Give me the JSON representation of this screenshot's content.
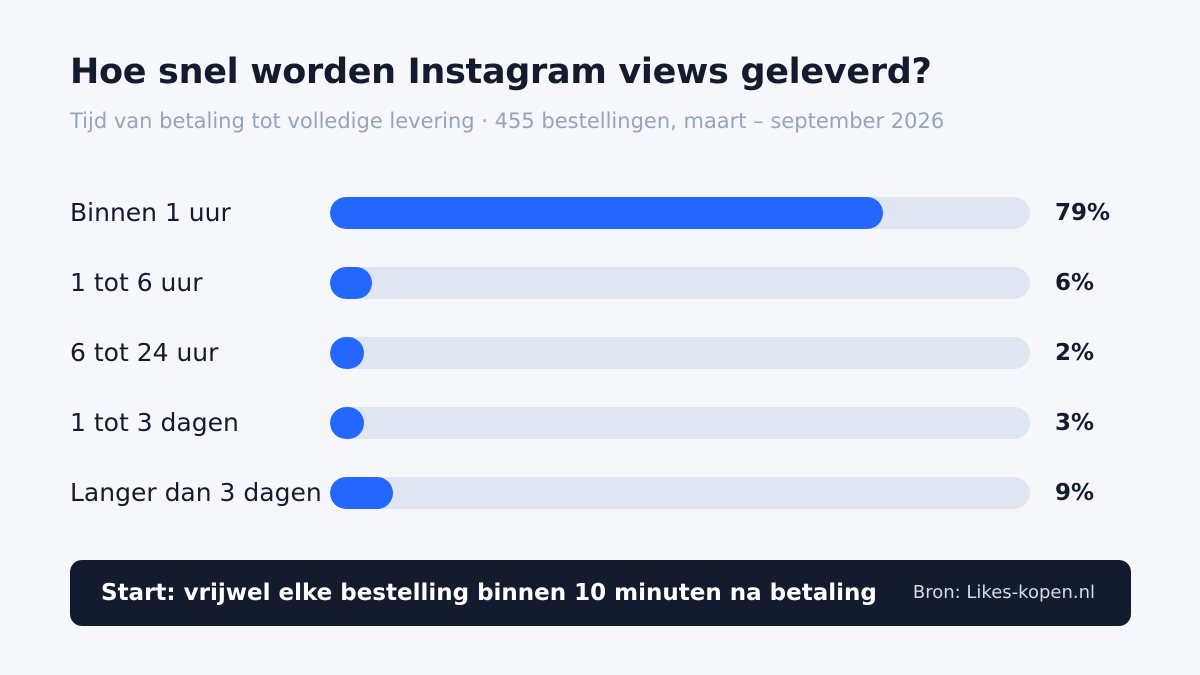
{
  "chart_data": {
    "type": "bar",
    "orientation": "horizontal",
    "title": "Hoe snel worden Instagram views geleverd?",
    "subtitle": "Tijd van betaling tot volledige levering · 455 bestellingen, maart – september 2026",
    "categories": [
      "Binnen 1 uur",
      "1 tot 6 uur",
      "6 tot 24 uur",
      "1 tot 3 dagen",
      "Langer dan 3 dagen"
    ],
    "values": [
      79,
      6,
      2,
      3,
      9
    ],
    "value_labels": [
      "79%",
      "6%",
      "2%",
      "3%",
      "9%"
    ],
    "unit": "%",
    "xlim": [
      0,
      100
    ],
    "grid": false,
    "legend": "none",
    "colors": {
      "bar": "#2367ff",
      "track": "#dfe6f1"
    }
  },
  "footer": {
    "note": "Start: vrijwel elke bestelling binnen 10 minuten na betaling",
    "source": "Bron: Likes-kopen.nl"
  }
}
